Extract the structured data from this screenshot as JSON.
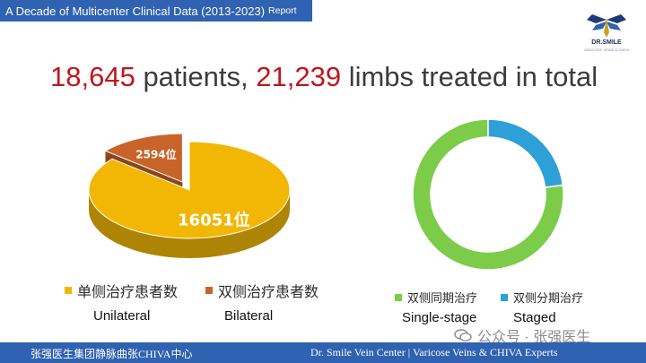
{
  "header": {
    "title": "A Decade of Multicenter Clinical Data (2013-2023)",
    "title_suffix": "Report"
  },
  "logo": {
    "name": "DR.SMILE",
    "tagline": "VARICOSE VEINS & CHIVA"
  },
  "headline": {
    "patients_value": "18,645",
    "patients_text": " patients, ",
    "limbs_value": "21,239",
    "limbs_text": " limbs treated in total"
  },
  "colors": {
    "accent_red": "#c0161c",
    "banner_blue": "#2f62b0",
    "unilateral": "#f2b705",
    "bilateral": "#c8642a",
    "single_stage": "#7ccc4a",
    "staged": "#2ea0d8"
  },
  "chart_data": [
    {
      "type": "pie",
      "style": "3d-exploded",
      "categories": [
        "单侧治疗患者数",
        "双侧治疗患者数"
      ],
      "values": [
        16051,
        2594
      ],
      "data_labels": [
        "16051位",
        "2594位"
      ],
      "sublabels": [
        "Unilateral",
        "Bilateral"
      ],
      "legend": "bottom"
    },
    {
      "type": "pie",
      "style": "donut",
      "categories": [
        "双侧同期治疗",
        "双侧分期治疗"
      ],
      "values": [
        0.77,
        0.23
      ],
      "sublabels": [
        "Single-stage",
        "Staged"
      ],
      "legend": "bottom"
    }
  ],
  "footer": {
    "left": "张强医生集团静脉曲张CHIVA中心",
    "right": "Dr. Smile Vein Center | Varicose Veins & CHIVA Experts"
  },
  "watermark": {
    "text": "公众号 · 张强医生",
    "icon": "wechat-icon"
  }
}
